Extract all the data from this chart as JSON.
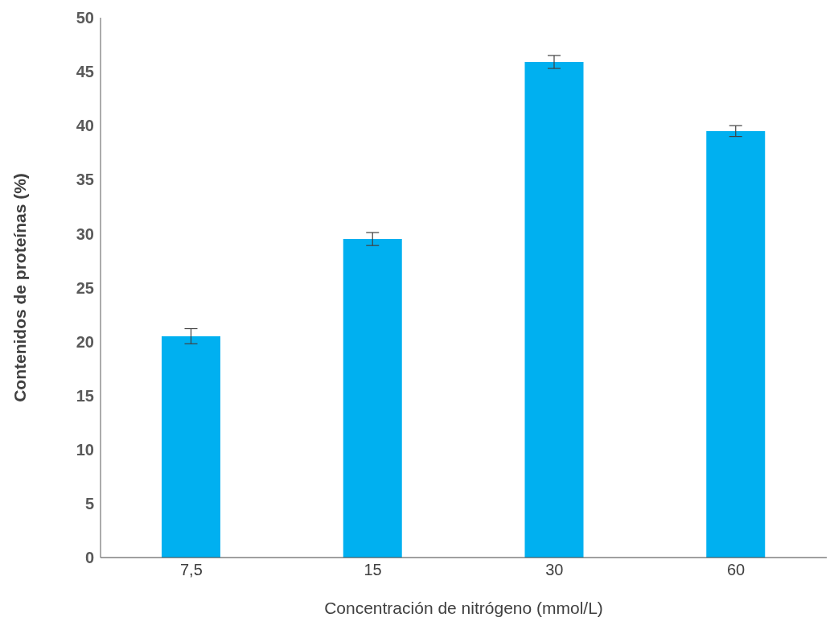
{
  "chart_data": {
    "type": "bar",
    "xlabel": "Concentración  de nitrógeno (mmol/L)",
    "ylabel": "Contenidos de proteínas (%)",
    "categories": [
      "7,5",
      "15",
      "30",
      "60"
    ],
    "values": [
      20.5,
      29.5,
      45.9,
      39.5
    ],
    "errors": [
      0.7,
      0.6,
      0.6,
      0.5
    ],
    "color": "#00b0f0",
    "ylim": [
      0,
      50
    ],
    "yticks": [
      0,
      5,
      10,
      15,
      20,
      25,
      30,
      35,
      40,
      45,
      50
    ],
    "grid": false,
    "legend": false
  }
}
